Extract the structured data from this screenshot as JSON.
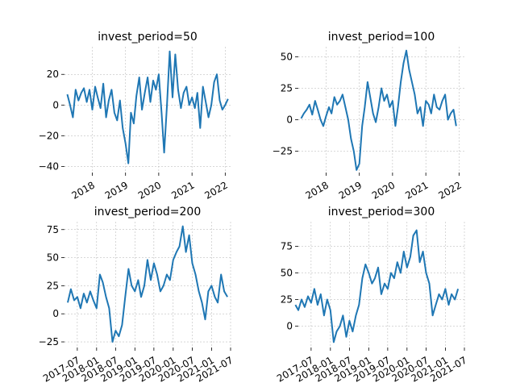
{
  "colors": {
    "series": "#1f77b4",
    "grid": "#b0b0b0",
    "background": "#ffffff"
  },
  "chart_data": [
    {
      "type": "line",
      "title": "invest_period=50",
      "xlabel": "",
      "ylabel": "",
      "grid": true,
      "x_range": [
        "2017-03-01",
        "2022-03-01"
      ],
      "ylim": [
        -44,
        38
      ],
      "y_ticks": [
        -40,
        -20,
        0,
        20
      ],
      "y_tick_labels": [
        "−40",
        "−20",
        "0",
        "20"
      ],
      "x_ticks": [
        "2018-01-01",
        "2019-01-01",
        "2020-01-01",
        "2021-01-01",
        "2022-01-01"
      ],
      "x_tick_labels": [
        "2018",
        "2019",
        "2020",
        "2021",
        "2022"
      ],
      "x_tick_rotation": 30,
      "series": [
        {
          "x": [
            "2017-04-01",
            "2017-05-01",
            "2017-06-01",
            "2017-07-01",
            "2017-08-01",
            "2017-09-01",
            "2017-10-01",
            "2017-11-01",
            "2017-12-01",
            "2018-01-01",
            "2018-02-01",
            "2018-03-01",
            "2018-04-01",
            "2018-05-01",
            "2018-06-01",
            "2018-07-01",
            "2018-08-01",
            "2018-09-01",
            "2018-10-01",
            "2018-11-01",
            "2018-12-01",
            "2019-01-01",
            "2019-02-01",
            "2019-03-01",
            "2019-04-01",
            "2019-05-01",
            "2019-06-01",
            "2019-07-01",
            "2019-08-01",
            "2019-09-01",
            "2019-10-01",
            "2019-11-01",
            "2019-12-01",
            "2020-01-01",
            "2020-02-01",
            "2020-03-01",
            "2020-04-01",
            "2020-05-01",
            "2020-06-01",
            "2020-07-01",
            "2020-08-01",
            "2020-09-01",
            "2020-10-01",
            "2020-11-01",
            "2020-12-01",
            "2021-01-01",
            "2021-02-01",
            "2021-03-01",
            "2021-04-01",
            "2021-05-01",
            "2021-06-01",
            "2021-07-01",
            "2021-08-01",
            "2021-09-01",
            "2021-10-01",
            "2021-11-01",
            "2021-12-01",
            "2022-01-01",
            "2022-02-01"
          ],
          "values": [
            7,
            0,
            -8,
            10,
            3,
            8,
            11,
            2,
            10,
            -3,
            12,
            5,
            -2,
            14,
            -8,
            3,
            10,
            -5,
            -10,
            3,
            -15,
            -25,
            -38,
            -5,
            -12,
            6,
            18,
            -3,
            8,
            18,
            2,
            16,
            10,
            20,
            -5,
            -31,
            0,
            35,
            5,
            33,
            10,
            -2,
            8,
            12,
            0,
            5,
            -2,
            8,
            -15,
            12,
            2,
            -8,
            0,
            15,
            20,
            3,
            -3,
            0,
            4
          ]
        }
      ]
    },
    {
      "type": "line",
      "title": "invest_period=100",
      "xlabel": "",
      "ylabel": "",
      "grid": true,
      "x_range": [
        "2017-03-01",
        "2022-03-01"
      ],
      "ylim": [
        -42,
        58
      ],
      "y_ticks": [
        -25,
        0,
        25,
        50
      ],
      "y_tick_labels": [
        "−25",
        "0",
        "25",
        "50"
      ],
      "x_ticks": [
        "2018-01-01",
        "2019-01-01",
        "2020-01-01",
        "2021-01-01",
        "2022-01-01"
      ],
      "x_tick_labels": [
        "2018",
        "2019",
        "2020",
        "2021",
        "2022"
      ],
      "x_tick_rotation": 30,
      "series": [
        {
          "x": [
            "2017-04-01",
            "2017-05-01",
            "2017-06-01",
            "2017-07-01",
            "2017-08-01",
            "2017-09-01",
            "2017-10-01",
            "2017-11-01",
            "2017-12-01",
            "2018-01-01",
            "2018-02-01",
            "2018-03-01",
            "2018-04-01",
            "2018-05-01",
            "2018-06-01",
            "2018-07-01",
            "2018-08-01",
            "2018-09-01",
            "2018-10-01",
            "2018-11-01",
            "2018-12-01",
            "2019-01-01",
            "2019-02-01",
            "2019-03-01",
            "2019-04-01",
            "2019-05-01",
            "2019-06-01",
            "2019-07-01",
            "2019-08-01",
            "2019-09-01",
            "2019-10-01",
            "2019-11-01",
            "2019-12-01",
            "2020-01-01",
            "2020-02-01",
            "2020-03-01",
            "2020-04-01",
            "2020-05-01",
            "2020-06-01",
            "2020-07-01",
            "2020-08-01",
            "2020-09-01",
            "2020-10-01",
            "2020-11-01",
            "2020-12-01",
            "2021-01-01",
            "2021-02-01",
            "2021-03-01",
            "2021-04-01",
            "2021-05-01",
            "2021-06-01",
            "2021-07-01",
            "2021-08-01",
            "2021-09-01",
            "2021-10-01",
            "2021-11-01",
            "2021-12-01"
          ],
          "values": [
            1,
            5,
            8,
            12,
            4,
            15,
            8,
            0,
            -5,
            3,
            10,
            5,
            18,
            12,
            15,
            20,
            10,
            0,
            -15,
            -25,
            -40,
            -35,
            -5,
            10,
            30,
            18,
            5,
            -2,
            10,
            25,
            15,
            20,
            10,
            15,
            -5,
            10,
            30,
            45,
            55,
            40,
            30,
            20,
            5,
            10,
            -5,
            15,
            12,
            5,
            20,
            10,
            8,
            15,
            20,
            0,
            5,
            8,
            -5
          ]
        }
      ]
    },
    {
      "type": "line",
      "title": "invest_period=200",
      "xlabel": "",
      "ylabel": "",
      "grid": true,
      "x_range": [
        "2017-03-01",
        "2021-07-01"
      ],
      "ylim": [
        -30,
        82
      ],
      "y_ticks": [
        -25,
        0,
        25,
        50,
        75
      ],
      "y_tick_labels": [
        "−25",
        "0",
        "25",
        "50",
        "75"
      ],
      "x_ticks": [
        "2017-07-01",
        "2018-01-01",
        "2018-07-01",
        "2019-01-01",
        "2019-07-01",
        "2020-01-01",
        "2020-07-01",
        "2021-01-01",
        "2021-07-01"
      ],
      "x_tick_labels": [
        "2017-07",
        "2018-01",
        "2018-07",
        "2019-01",
        "2019-07",
        "2020-01",
        "2020-07",
        "2021-01",
        "2021-07"
      ],
      "x_tick_rotation": 30,
      "series": [
        {
          "x": [
            "2017-04-01",
            "2017-05-01",
            "2017-06-01",
            "2017-07-01",
            "2017-08-01",
            "2017-09-01",
            "2017-10-01",
            "2017-11-01",
            "2017-12-01",
            "2018-01-01",
            "2018-02-01",
            "2018-03-01",
            "2018-04-01",
            "2018-05-01",
            "2018-06-01",
            "2018-07-01",
            "2018-08-01",
            "2018-09-01",
            "2018-10-01",
            "2018-11-01",
            "2018-12-01",
            "2019-01-01",
            "2019-02-01",
            "2019-03-01",
            "2019-04-01",
            "2019-05-01",
            "2019-06-01",
            "2019-07-01",
            "2019-08-01",
            "2019-09-01",
            "2019-10-01",
            "2019-11-01",
            "2019-12-01",
            "2020-01-01",
            "2020-02-01",
            "2020-03-01",
            "2020-04-01",
            "2020-05-01",
            "2020-06-01",
            "2020-07-01",
            "2020-08-01",
            "2020-09-01",
            "2020-10-01",
            "2020-11-01",
            "2020-12-01",
            "2021-01-01",
            "2021-02-01",
            "2021-03-01",
            "2021-04-01",
            "2021-05-01",
            "2021-06-01"
          ],
          "values": [
            10,
            22,
            12,
            15,
            5,
            18,
            10,
            20,
            12,
            5,
            35,
            28,
            15,
            5,
            -25,
            -15,
            -20,
            -10,
            15,
            40,
            25,
            20,
            30,
            15,
            25,
            48,
            30,
            45,
            35,
            20,
            25,
            35,
            30,
            48,
            55,
            60,
            78,
            55,
            70,
            45,
            35,
            20,
            10,
            -5,
            20,
            25,
            15,
            10,
            35,
            20,
            15
          ]
        }
      ]
    },
    {
      "type": "line",
      "title": "invest_period=300",
      "xlabel": "",
      "ylabel": "",
      "grid": true,
      "x_range": [
        "2017-03-01",
        "2021-07-01"
      ],
      "ylim": [
        -20,
        98
      ],
      "y_ticks": [
        0,
        25,
        50,
        75
      ],
      "y_tick_labels": [
        "0",
        "25",
        "50",
        "75"
      ],
      "x_ticks": [
        "2017-07-01",
        "2018-01-01",
        "2018-07-01",
        "2019-01-01",
        "2019-07-01",
        "2020-01-01",
        "2020-07-01",
        "2021-01-01",
        "2021-07-01"
      ],
      "x_tick_labels": [
        "2017-07",
        "2018-01",
        "2018-07",
        "2019-01",
        "2019-07",
        "2020-01",
        "2020-07",
        "2021-01",
        "2021-07"
      ],
      "x_tick_rotation": 30,
      "series": [
        {
          "x": [
            "2017-02-01",
            "2017-03-01",
            "2017-04-01",
            "2017-05-01",
            "2017-06-01",
            "2017-07-01",
            "2017-08-01",
            "2017-09-01",
            "2017-10-01",
            "2017-11-01",
            "2017-12-01",
            "2018-01-01",
            "2018-02-01",
            "2018-03-01",
            "2018-04-01",
            "2018-05-01",
            "2018-06-01",
            "2018-07-01",
            "2018-08-01",
            "2018-09-01",
            "2018-10-01",
            "2018-11-01",
            "2018-12-01",
            "2019-01-01",
            "2019-02-01",
            "2019-03-01",
            "2019-04-01",
            "2019-05-01",
            "2019-06-01",
            "2019-07-01",
            "2019-08-01",
            "2019-09-01",
            "2019-10-01",
            "2019-11-01",
            "2019-12-01",
            "2020-01-01",
            "2020-02-01",
            "2020-03-01",
            "2020-04-01",
            "2020-05-01",
            "2020-06-01",
            "2020-07-01",
            "2020-08-01",
            "2020-09-01",
            "2020-10-01",
            "2020-11-01",
            "2020-12-01",
            "2021-01-01",
            "2021-02-01",
            "2021-03-01",
            "2021-04-01",
            "2021-05-01"
          ],
          "values": [
            20,
            15,
            25,
            18,
            28,
            22,
            35,
            20,
            30,
            10,
            25,
            15,
            -15,
            -5,
            0,
            10,
            -10,
            5,
            -5,
            10,
            20,
            45,
            58,
            50,
            40,
            45,
            55,
            30,
            40,
            35,
            50,
            45,
            60,
            50,
            70,
            55,
            65,
            85,
            90,
            60,
            70,
            50,
            40,
            10,
            20,
            30,
            25,
            35,
            20,
            30,
            25,
            35
          ]
        }
      ]
    }
  ]
}
